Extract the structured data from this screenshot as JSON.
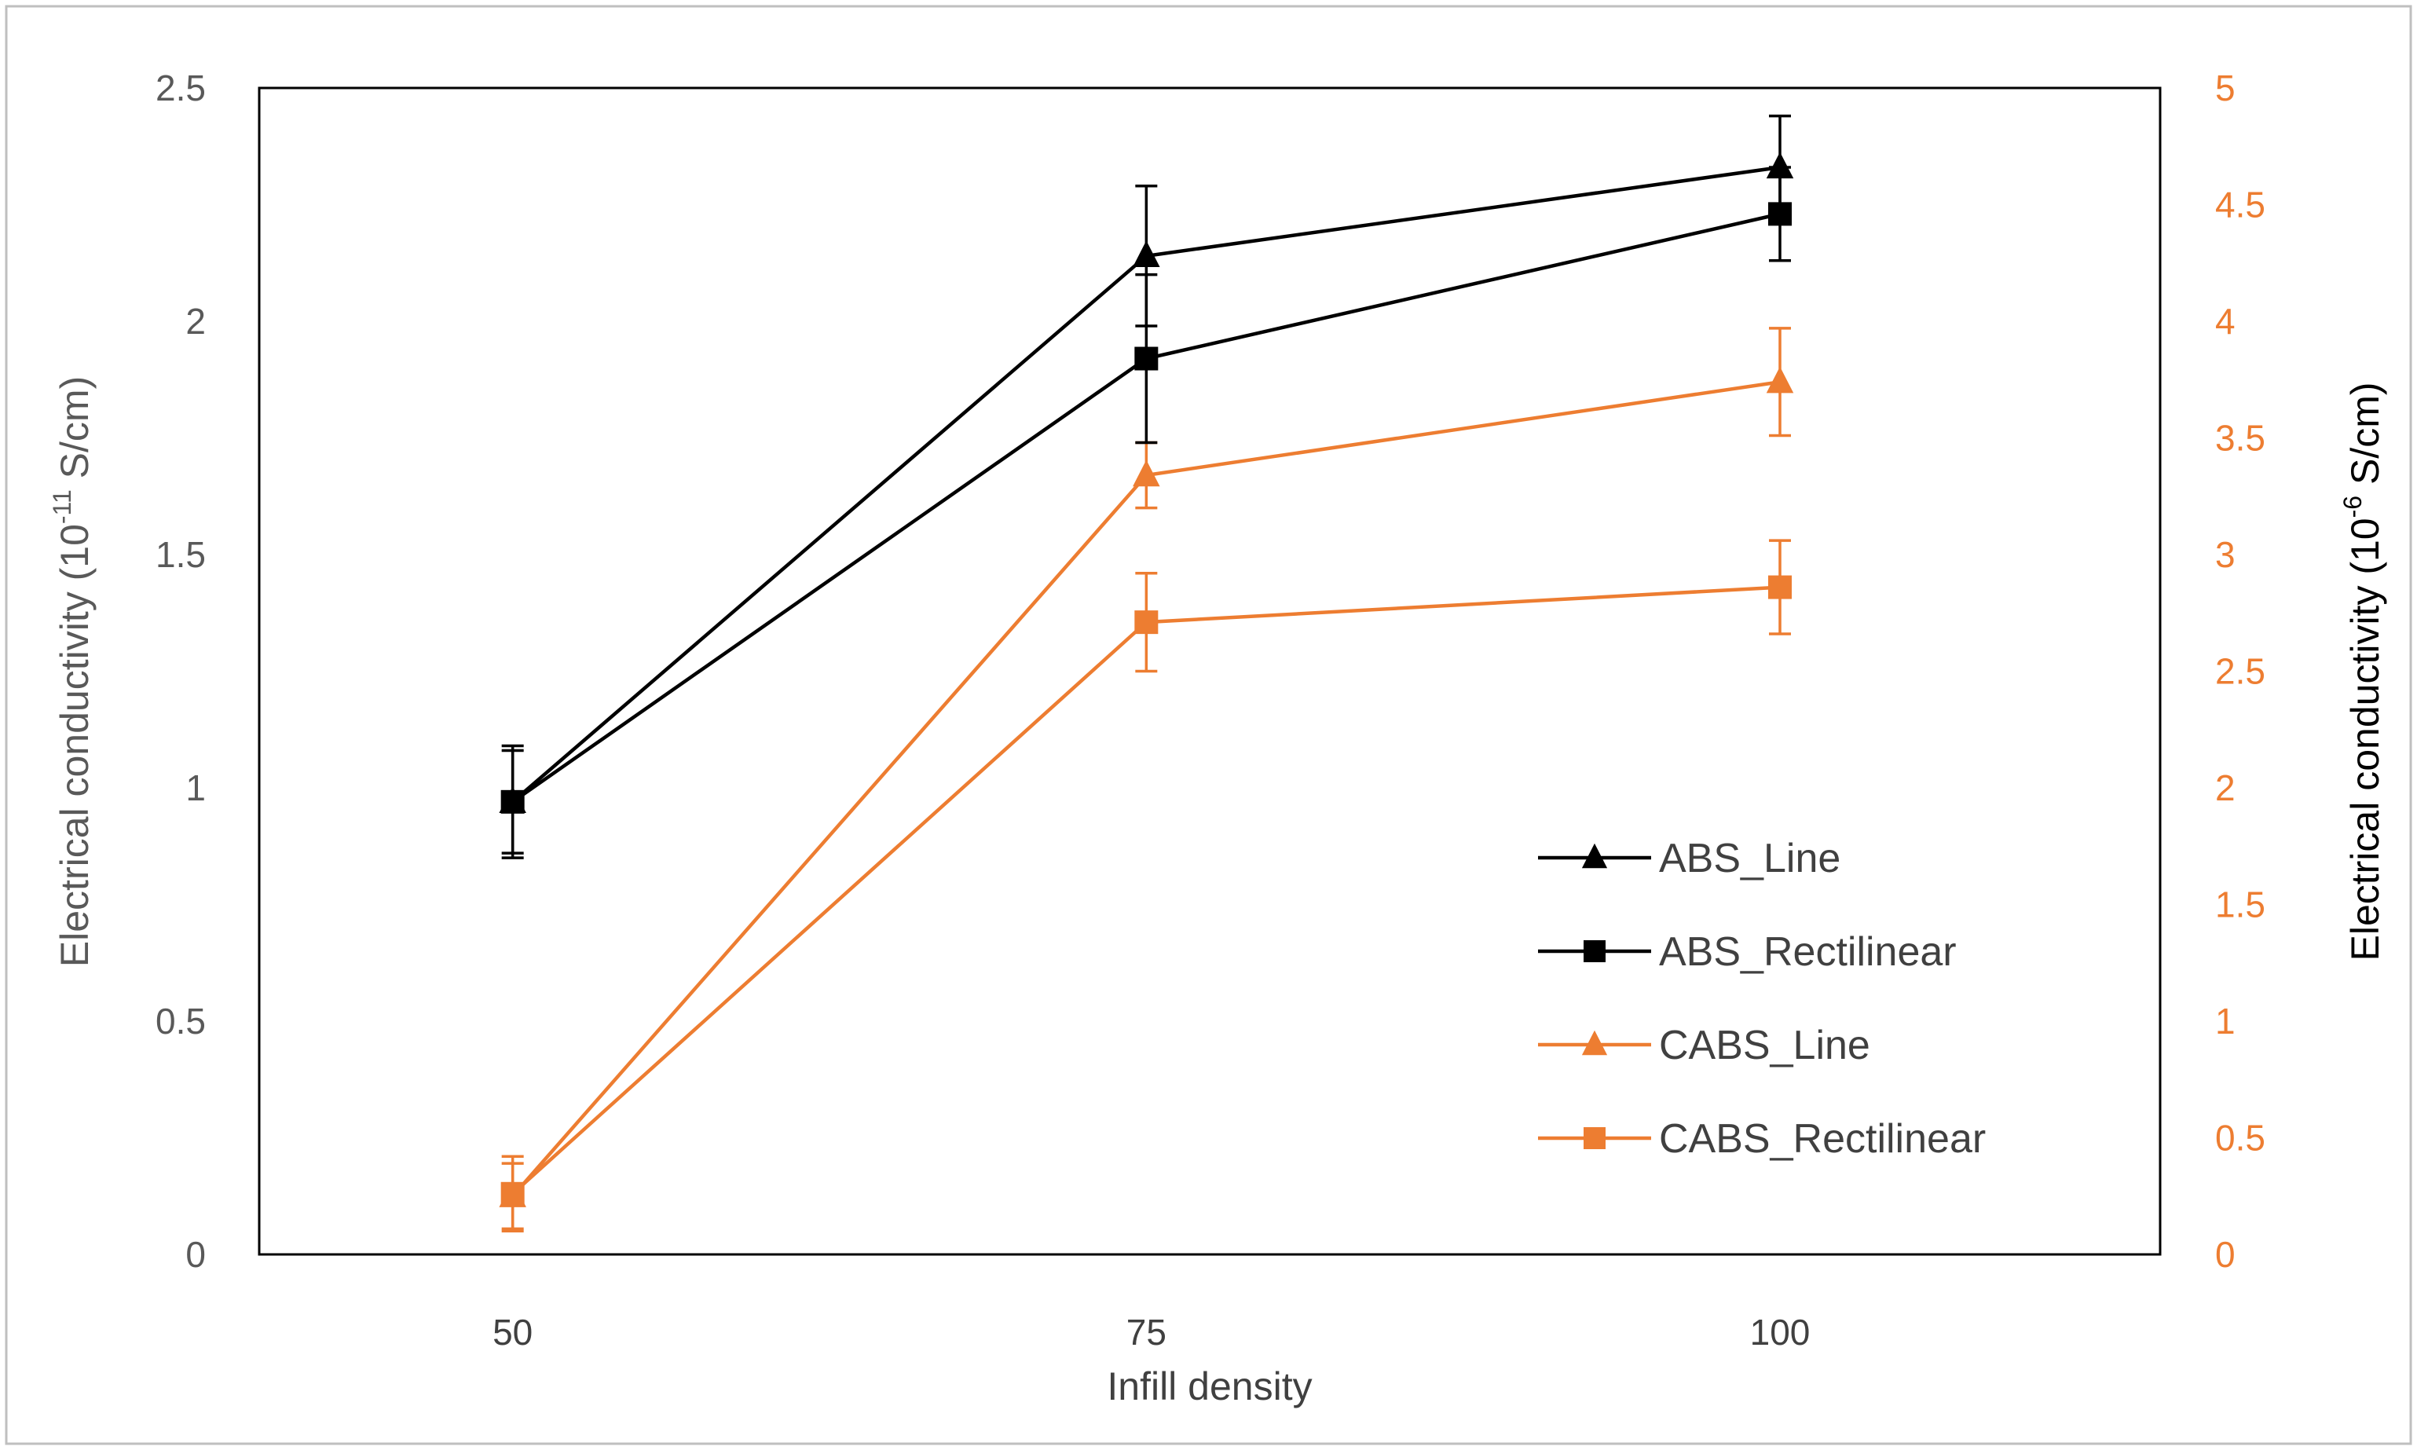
{
  "chart_data": {
    "type": "line",
    "x": [
      50,
      75,
      100
    ],
    "xlabel": "Infill density",
    "xlim": [
      40,
      115
    ],
    "x_ticks": [
      "50",
      "75",
      "100"
    ],
    "ylabel_left": {
      "prefix": "Electrical conductivity (10",
      "exp": "-11",
      "suffix": "  S/cm)"
    },
    "ylabel_right": {
      "prefix": "Electrical conductivity (10",
      "exp": "-6",
      "suffix": " S/cm)"
    },
    "ylim_left": [
      0,
      2.5
    ],
    "ylim_right": [
      0,
      5
    ],
    "y_ticks_left": [
      "0",
      "0.5",
      "1",
      "1.5",
      "2",
      "2.5"
    ],
    "y_ticks_right": [
      "0",
      "0.5",
      "1",
      "1.5",
      "2",
      "2.5",
      "3",
      "3.5",
      "4",
      "4.5",
      "5"
    ],
    "legend_position": "lower-right",
    "series": [
      {
        "name": "ABS_Line",
        "axis": "left",
        "marker": "triangle",
        "color": "#000000",
        "values": [
          0.97,
          2.14,
          2.33
        ],
        "errors": [
          0.12,
          0.15,
          0.11
        ]
      },
      {
        "name": "ABS_Rectilinear",
        "axis": "left",
        "marker": "square",
        "color": "#000000",
        "values": [
          0.97,
          1.92,
          2.23
        ],
        "errors": [
          0.11,
          0.18,
          0.1
        ]
      },
      {
        "name": "CABS_Line",
        "axis": "right",
        "marker": "triangle",
        "color": "#ED7D31",
        "values": [
          0.25,
          3.34,
          3.74
        ],
        "errors": [
          0.14,
          0.14,
          0.23
        ]
      },
      {
        "name": "CABS_Rectilinear",
        "axis": "right",
        "marker": "square",
        "color": "#ED7D31",
        "values": [
          0.26,
          2.71,
          2.86
        ],
        "errors": [
          0.16,
          0.21,
          0.2
        ]
      }
    ]
  }
}
